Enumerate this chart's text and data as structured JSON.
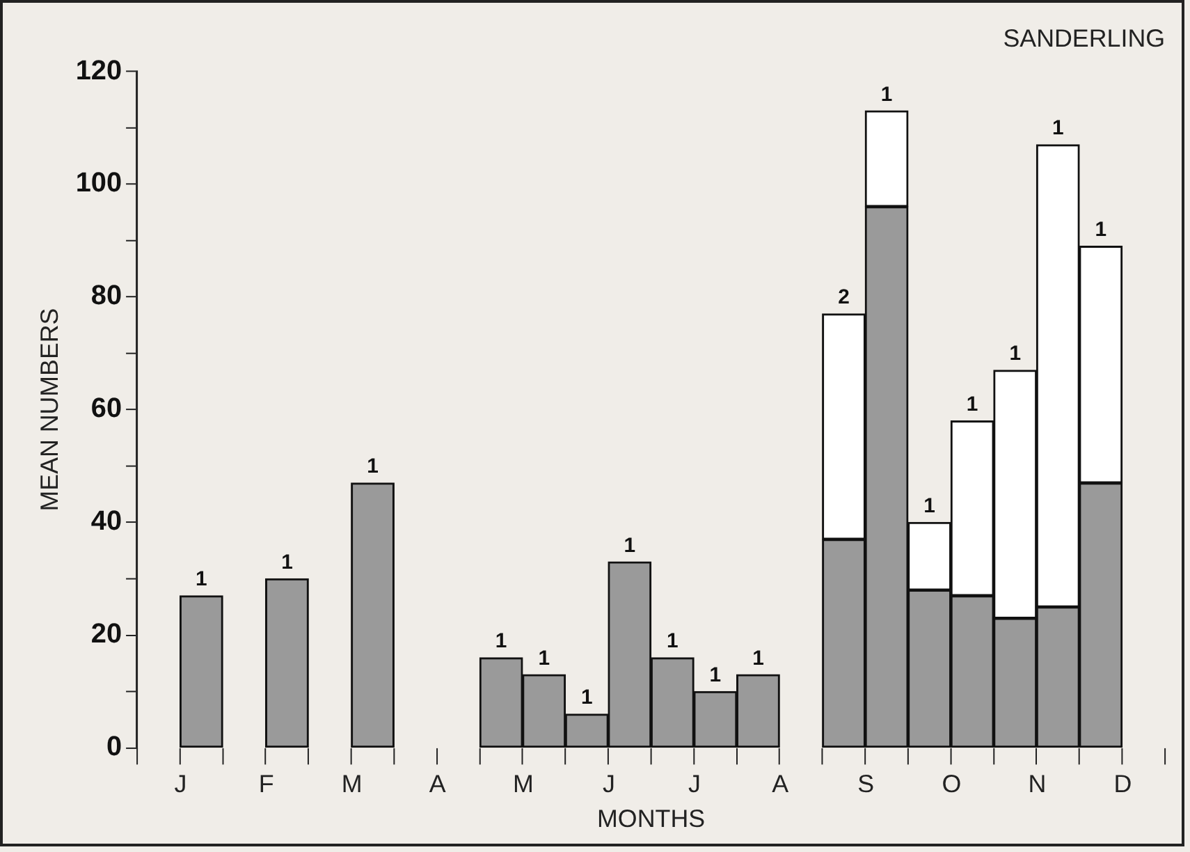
{
  "chart_data": {
    "type": "bar",
    "title": "SANDERLING",
    "xlabel": "MONTHS",
    "ylabel": "MEAN NUMBERS",
    "stacked": true,
    "categories": [
      null,
      "J",
      null,
      "F",
      null,
      "M",
      null,
      "A",
      null,
      "M",
      null,
      "J",
      null,
      "J",
      null,
      "A",
      null,
      "S",
      null,
      "O",
      null,
      "N",
      null,
      "D"
    ],
    "series": [
      {
        "color": "#9a9a9a",
        "values": [
          null,
          27,
          null,
          30,
          null,
          47,
          null,
          null,
          16,
          13,
          6,
          33,
          16,
          10,
          13,
          null,
          37,
          96,
          28,
          27,
          23,
          25,
          47,
          null
        ]
      },
      {
        "color": "#ffffff",
        "values": [
          null,
          null,
          null,
          null,
          null,
          null,
          null,
          null,
          null,
          null,
          null,
          null,
          null,
          null,
          null,
          null,
          40,
          17,
          12,
          31,
          44,
          82,
          42,
          null
        ]
      }
    ],
    "annotations": [
      "1",
      "1",
      "1",
      "1",
      "1",
      "1",
      "1",
      "1",
      "1",
      "1",
      "2",
      "1",
      "1",
      "1",
      "1",
      "1",
      "1"
    ],
    "ylim": [
      0,
      120
    ],
    "yticks": [
      0,
      {
        "value": 10,
        "label": null
      },
      20,
      {
        "value": 30,
        "label": null
      },
      40,
      {
        "value": 50,
        "label": null
      },
      60,
      {
        "value": 70,
        "label": null
      },
      80,
      {
        "value": 90,
        "label": null
      },
      100,
      {
        "value": 110,
        "label": null
      },
      120
    ]
  }
}
